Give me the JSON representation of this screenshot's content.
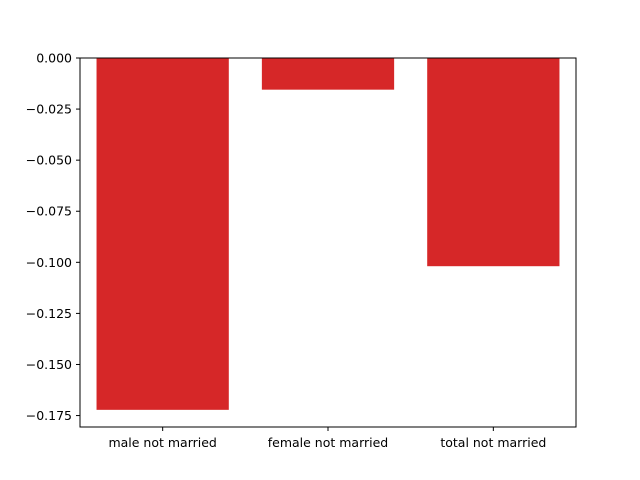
{
  "chart_data": {
    "type": "bar",
    "title": "",
    "xlabel": "",
    "ylabel": "",
    "categories": [
      "male not married",
      "female not married",
      "total not married"
    ],
    "values": [
      -0.1722,
      -0.0155,
      -0.1019
    ],
    "ylim": [
      -0.1806,
      0.0
    ],
    "yticks": [
      0.0,
      -0.025,
      -0.05,
      -0.075,
      -0.1,
      -0.125,
      -0.15,
      -0.175
    ],
    "ytick_labels": [
      "0.000",
      "−0.025",
      "−0.050",
      "−0.075",
      "−0.100",
      "−0.125",
      "−0.150",
      "−0.175"
    ],
    "bar_color": "#d62728",
    "grid": false,
    "legend": "none"
  }
}
